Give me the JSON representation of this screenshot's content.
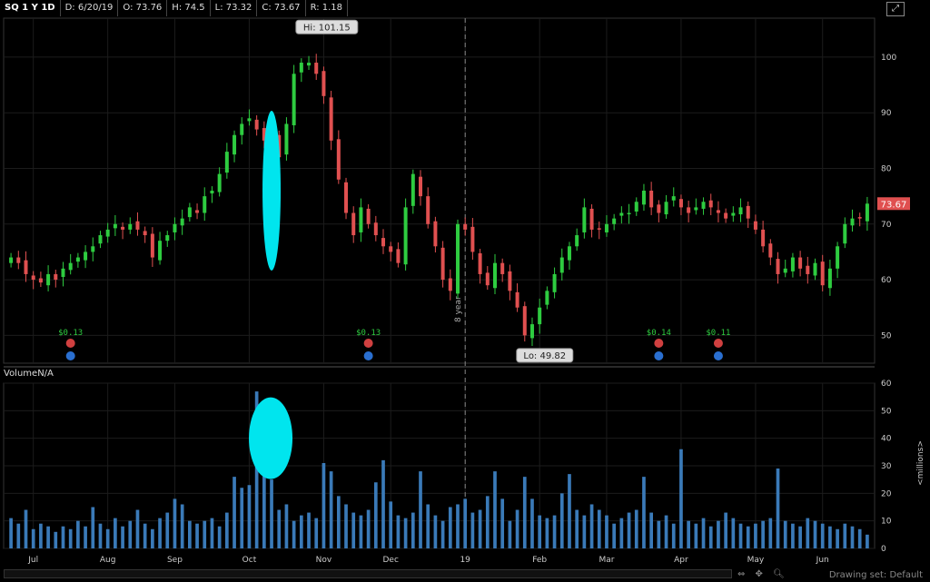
{
  "header": {
    "symbol": "SQ 1 Y 1D",
    "date": "D: 6/20/19",
    "open": "O: 73.76",
    "high": "H: 74.5",
    "low": "L: 73.32",
    "close": "C: 73.67",
    "range": "R: 1.18"
  },
  "volume_label": "VolumeN/A",
  "status_text": "Drawing set: Default",
  "colors": {
    "up": "#2ecc40",
    "down": "#e05050",
    "volume": "#3a7ab8",
    "highlight": "#00e5ee",
    "last_price": "#e05050",
    "earnings": "#2ecc40"
  },
  "chart_data": [
    {
      "type": "candlestick",
      "x_tick_labels": [
        "Jul",
        "Aug",
        "Sep",
        "Oct",
        "Nov",
        "Dec",
        "19",
        "Feb",
        "Mar",
        "Apr",
        "May",
        "Jun"
      ],
      "y_ticks": [
        50,
        60,
        70,
        80,
        90,
        100
      ],
      "ylim": [
        45,
        107
      ],
      "annotations": {
        "high": "Hi: 101.15",
        "low": "Lo: 49.82",
        "last_price": "73.67",
        "year_marker": "8 year"
      },
      "earnings": [
        "$0.13",
        "$0.13",
        "$0.14",
        "$0.11"
      ],
      "close_series": [
        64,
        63,
        61,
        60,
        59.5,
        61,
        60,
        62,
        63,
        64,
        65,
        66,
        68,
        69,
        70,
        69,
        70,
        69,
        68,
        64,
        67,
        68,
        70,
        71,
        73,
        72,
        75,
        76,
        79,
        83,
        86,
        88,
        89,
        87,
        85,
        86,
        82,
        88,
        97,
        99,
        99,
        97,
        93,
        85,
        78,
        72,
        68,
        73,
        70,
        68,
        66,
        65,
        63,
        73,
        79,
        75,
        70,
        66,
        60,
        58,
        70,
        69,
        65,
        61,
        59,
        63,
        61,
        58,
        55,
        50,
        52,
        55,
        58,
        61,
        64,
        66,
        68,
        73,
        69,
        69,
        70,
        71,
        72,
        72,
        74,
        76,
        73,
        72,
        74,
        75,
        73,
        72,
        73,
        74,
        73,
        72,
        71,
        72,
        73,
        71,
        69,
        66,
        64,
        61,
        62,
        64,
        62,
        61,
        63,
        59,
        62,
        66,
        70,
        71,
        71,
        73.67
      ]
    },
    {
      "type": "bar",
      "series_name": "Volume",
      "y_ticks": [
        0,
        10,
        20,
        30,
        40,
        50,
        60
      ],
      "ylim": [
        0,
        60
      ],
      "y_unit_label": "<millions>",
      "values": [
        11,
        9,
        14,
        7,
        9,
        8,
        6,
        8,
        7,
        10,
        8,
        15,
        9,
        7,
        11,
        8,
        10,
        14,
        9,
        7,
        11,
        13,
        18,
        16,
        10,
        9,
        10,
        11,
        8,
        13,
        26,
        22,
        23,
        57,
        36,
        25,
        14,
        16,
        10,
        12,
        13,
        11,
        31,
        28,
        19,
        16,
        13,
        12,
        14,
        24,
        32,
        17,
        12,
        11,
        13,
        28,
        16,
        12,
        10,
        15,
        16,
        18,
        13,
        14,
        19,
        28,
        18,
        10,
        14,
        26,
        18,
        12,
        11,
        12,
        20,
        27,
        14,
        12,
        16,
        14,
        12,
        9,
        11,
        13,
        14,
        26,
        13,
        10,
        12,
        9,
        36,
        10,
        9,
        11,
        8,
        10,
        13,
        11,
        9,
        8,
        9,
        10,
        11,
        29,
        10,
        9,
        8,
        11,
        10,
        9,
        8,
        7,
        9,
        8,
        7,
        5
      ]
    }
  ]
}
